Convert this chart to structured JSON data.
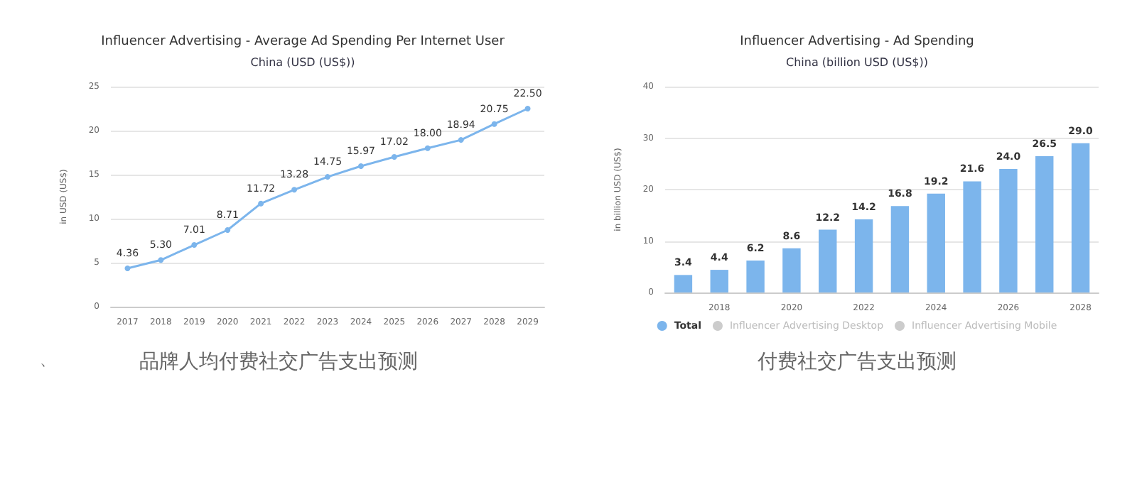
{
  "chart_data": [
    {
      "type": "line",
      "title": "Influencer Advertising - Average Ad Spending Per Internet User",
      "subtitle": "China (USD (US$))",
      "ylabel": "in USD (US$)",
      "categories": [
        "2017",
        "2018",
        "2019",
        "2020",
        "2021",
        "2022",
        "2023",
        "2024",
        "2025",
        "2026",
        "2027",
        "2028",
        "2029"
      ],
      "series": [
        {
          "color": "#7cb5ec",
          "values": [
            4.36,
            5.3,
            7.01,
            8.71,
            11.72,
            13.28,
            14.75,
            15.97,
            17.02,
            18.0,
            18.94,
            20.75,
            22.5
          ],
          "value_labels": [
            "4.36",
            "5.30",
            "7.01",
            "8.71",
            "11.72",
            "13.28",
            "14.75",
            "15.97",
            "17.02",
            "18.00",
            "18.94",
            "20.75",
            "22.50"
          ]
        }
      ],
      "ylim": [
        0,
        25
      ],
      "yticks": [
        0,
        5,
        10,
        15,
        20,
        25
      ],
      "grid": "y",
      "marker": "circle",
      "line_style": "solid",
      "legend": false,
      "annotations": [
        "、",
        "品牌人均付费社交广告支出预测"
      ]
    },
    {
      "type": "bar",
      "title": "Influencer Advertising - Ad Spending",
      "subtitle": "China (billion USD (US$))",
      "ylabel": "in billion USD (US$)",
      "categories": [
        null,
        "2018",
        null,
        "2020",
        null,
        "2022",
        null,
        "2024",
        null,
        "2026",
        null,
        "2028"
      ],
      "series": [
        {
          "name": "Total",
          "color": "#7cb5ec",
          "values": [
            3.4,
            4.4,
            6.2,
            8.6,
            12.2,
            14.2,
            16.8,
            19.2,
            21.6,
            24.0,
            26.5,
            29.0
          ],
          "value_labels": [
            "3.4",
            "4.4",
            "6.2",
            "8.6",
            "12.2",
            "14.2",
            "16.8",
            "19.2",
            "21.6",
            "24.0",
            "26.5",
            "29.0"
          ]
        },
        {
          "name": "Influencer Advertising Desktop",
          "color": "#cccccc",
          "values": [
            null,
            null,
            null,
            null,
            null,
            null,
            null,
            null,
            null,
            null,
            null,
            null
          ]
        },
        {
          "name": "Influencer Advertising Mobile",
          "color": "#cccccc",
          "values": [
            null,
            null,
            null,
            null,
            null,
            null,
            null,
            null,
            null,
            null,
            null,
            null
          ]
        }
      ],
      "ylim": [
        0,
        40
      ],
      "yticks": [
        0,
        10,
        20,
        30,
        40
      ],
      "grid": "y",
      "legend": "bottom",
      "annotations": [
        "付费社交广告支出预测"
      ]
    }
  ]
}
